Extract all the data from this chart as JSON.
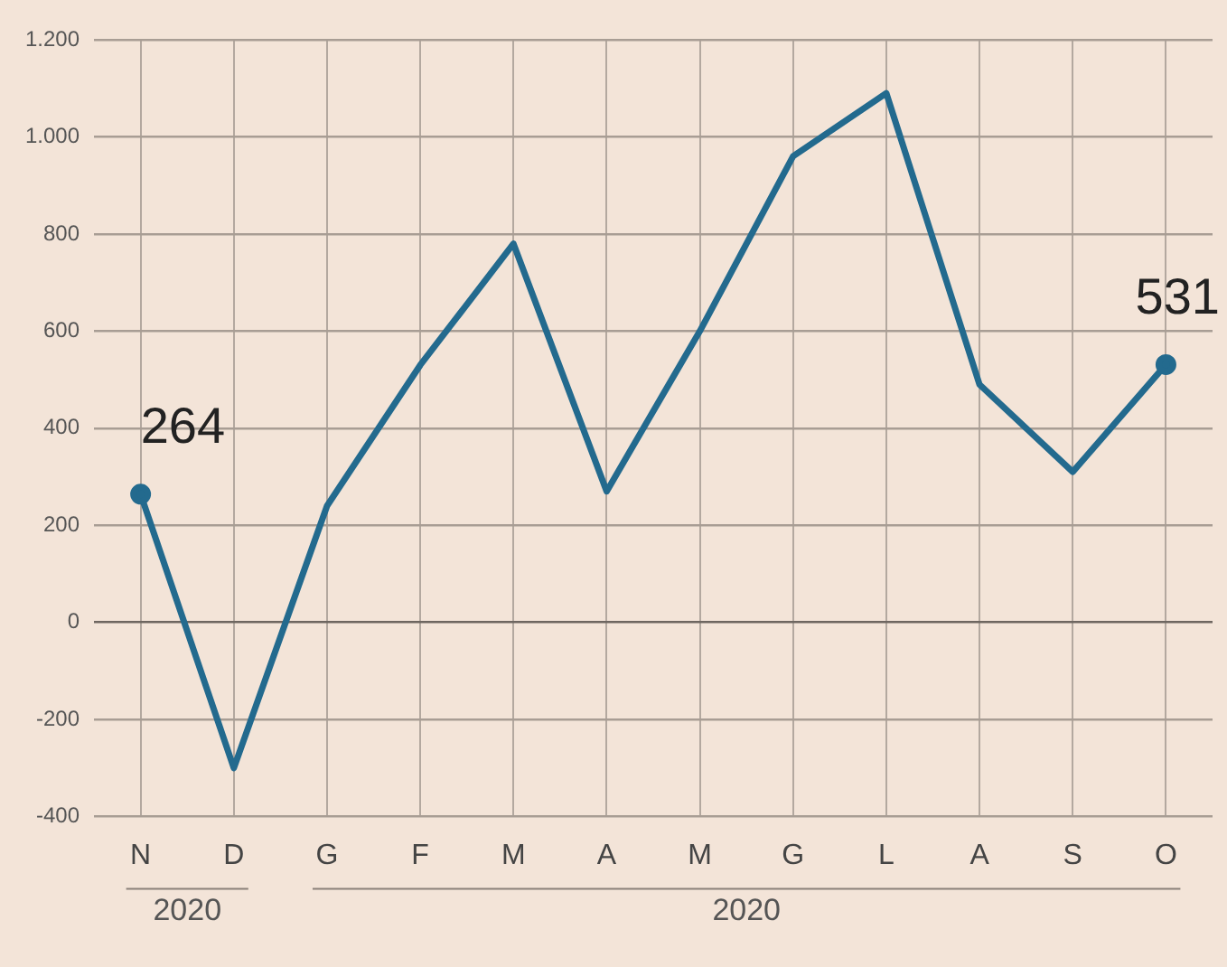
{
  "chart_data": {
    "type": "line",
    "categories": [
      "N",
      "D",
      "G",
      "F",
      "M",
      "A",
      "M",
      "G",
      "L",
      "A",
      "S",
      "O"
    ],
    "series": [
      {
        "color": "#236a8e",
        "values": [
          264,
          -300,
          240,
          530,
          780,
          270,
          600,
          960,
          1090,
          490,
          310,
          531
        ],
        "value_labels": [
          "264",
          null,
          null,
          null,
          null,
          null,
          null,
          null,
          null,
          null,
          null,
          "531"
        ]
      }
    ],
    "ylim": [
      -400,
      1200
    ],
    "yticks": [
      {
        "value": -400,
        "label": "-400"
      },
      {
        "value": -200,
        "label": "-200"
      },
      0,
      200,
      400,
      600,
      800,
      {
        "value": 1000,
        "label": "1.000"
      },
      {
        "value": 1200,
        "label": "1.200"
      }
    ],
    "annotations": [
      "2020",
      "2020"
    ],
    "grid": true,
    "legend": false,
    "line_style": "solid"
  }
}
